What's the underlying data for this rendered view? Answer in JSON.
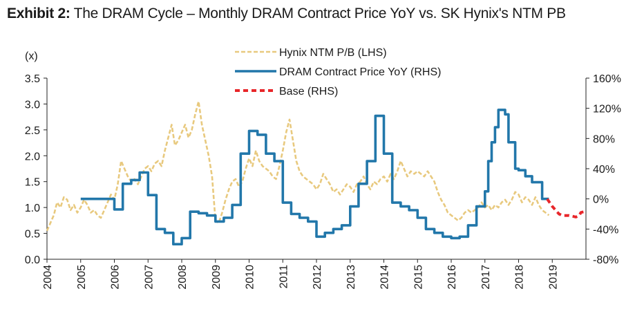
{
  "title": {
    "label": "Exhibit 2:",
    "text": "The DRAM Cycle – Monthly DRAM Contract Price YoY vs. SK Hynix's NTM PB"
  },
  "chart_data": {
    "type": "line",
    "title": "Exhibit 2: The DRAM Cycle – Monthly DRAM Contract Price YoY vs. SK Hynix's NTM PB",
    "y_left_unit": "(x)",
    "y_left_range": [
      0.0,
      3.5
    ],
    "y_left_ticks": [
      "0.0",
      "0.5",
      "1.0",
      "1.5",
      "2.0",
      "2.5",
      "3.0",
      "3.5"
    ],
    "y_right_range": [
      -80,
      160
    ],
    "y_right_ticks": [
      "-80%",
      "-40%",
      "0%",
      "40%",
      "80%",
      "120%",
      "160%"
    ],
    "x_range": [
      2004,
      2020
    ],
    "x_ticks": [
      "2004",
      "2005",
      "2006",
      "2007",
      "2008",
      "2009",
      "2010",
      "2011",
      "2012",
      "2013",
      "2014",
      "2015",
      "2016",
      "2017",
      "2018",
      "2019"
    ],
    "legend": [
      {
        "name": "Hynix NTM P/B (LHS)",
        "color": "#e8c97e",
        "style": "dashed"
      },
      {
        "name": "DRAM Contract Price YoY (RHS)",
        "color": "#2277aa",
        "style": "solid"
      },
      {
        "name": "Base (RHS)",
        "color": "#e8262a",
        "style": "dashed"
      }
    ],
    "series": [
      {
        "name": "Hynix NTM P/B (LHS)",
        "axis": "left",
        "points": [
          [
            2004.0,
            0.55
          ],
          [
            2004.1,
            0.7
          ],
          [
            2004.2,
            0.85
          ],
          [
            2004.3,
            1.1
          ],
          [
            2004.4,
            1.0
          ],
          [
            2004.5,
            1.2
          ],
          [
            2004.6,
            1.15
          ],
          [
            2004.7,
            0.95
          ],
          [
            2004.8,
            1.05
          ],
          [
            2004.9,
            0.9
          ],
          [
            2005.0,
            1.0
          ],
          [
            2005.1,
            1.15
          ],
          [
            2005.2,
            1.05
          ],
          [
            2005.3,
            0.9
          ],
          [
            2005.4,
            0.95
          ],
          [
            2005.5,
            0.85
          ],
          [
            2005.6,
            0.8
          ],
          [
            2005.7,
            0.95
          ],
          [
            2005.8,
            1.1
          ],
          [
            2005.9,
            1.25
          ],
          [
            2006.0,
            1.15
          ],
          [
            2006.1,
            1.45
          ],
          [
            2006.2,
            1.9
          ],
          [
            2006.3,
            1.75
          ],
          [
            2006.4,
            1.6
          ],
          [
            2006.5,
            1.5
          ],
          [
            2006.6,
            1.55
          ],
          [
            2006.7,
            1.45
          ],
          [
            2006.8,
            1.6
          ],
          [
            2006.9,
            1.75
          ],
          [
            2007.0,
            1.8
          ],
          [
            2007.1,
            1.7
          ],
          [
            2007.2,
            1.85
          ],
          [
            2007.3,
            1.9
          ],
          [
            2007.4,
            1.8
          ],
          [
            2007.5,
            2.1
          ],
          [
            2007.6,
            2.35
          ],
          [
            2007.7,
            2.6
          ],
          [
            2007.8,
            2.2
          ],
          [
            2007.9,
            2.3
          ],
          [
            2008.0,
            2.45
          ],
          [
            2008.1,
            2.6
          ],
          [
            2008.2,
            2.35
          ],
          [
            2008.3,
            2.5
          ],
          [
            2008.4,
            2.8
          ],
          [
            2008.5,
            3.05
          ],
          [
            2008.6,
            2.6
          ],
          [
            2008.7,
            2.3
          ],
          [
            2008.8,
            2.0
          ],
          [
            2008.9,
            1.6
          ],
          [
            2009.0,
            0.75
          ],
          [
            2009.1,
            0.7
          ],
          [
            2009.2,
            0.9
          ],
          [
            2009.3,
            1.15
          ],
          [
            2009.4,
            1.35
          ],
          [
            2009.5,
            1.5
          ],
          [
            2009.6,
            1.55
          ],
          [
            2009.7,
            1.4
          ],
          [
            2009.8,
            1.5
          ],
          [
            2009.9,
            1.75
          ],
          [
            2010.0,
            1.95
          ],
          [
            2010.1,
            1.8
          ],
          [
            2010.2,
            2.1
          ],
          [
            2010.3,
            1.9
          ],
          [
            2010.4,
            1.8
          ],
          [
            2010.5,
            1.75
          ],
          [
            2010.6,
            1.7
          ],
          [
            2010.7,
            1.6
          ],
          [
            2010.8,
            1.55
          ],
          [
            2010.9,
            1.8
          ],
          [
            2011.0,
            2.1
          ],
          [
            2011.1,
            2.45
          ],
          [
            2011.2,
            2.7
          ],
          [
            2011.3,
            2.3
          ],
          [
            2011.4,
            1.9
          ],
          [
            2011.5,
            1.7
          ],
          [
            2011.6,
            1.6
          ],
          [
            2011.7,
            1.55
          ],
          [
            2011.8,
            1.5
          ],
          [
            2011.9,
            1.45
          ],
          [
            2012.0,
            1.35
          ],
          [
            2012.1,
            1.45
          ],
          [
            2012.2,
            1.65
          ],
          [
            2012.3,
            1.55
          ],
          [
            2012.4,
            1.45
          ],
          [
            2012.5,
            1.3
          ],
          [
            2012.6,
            1.35
          ],
          [
            2012.7,
            1.25
          ],
          [
            2012.8,
            1.35
          ],
          [
            2012.9,
            1.45
          ],
          [
            2013.0,
            1.4
          ],
          [
            2013.1,
            1.3
          ],
          [
            2013.2,
            1.45
          ],
          [
            2013.3,
            1.5
          ],
          [
            2013.4,
            1.6
          ],
          [
            2013.5,
            1.45
          ],
          [
            2013.6,
            1.35
          ],
          [
            2013.7,
            1.5
          ],
          [
            2013.8,
            1.45
          ],
          [
            2013.9,
            1.55
          ],
          [
            2014.0,
            1.6
          ],
          [
            2014.1,
            1.5
          ],
          [
            2014.2,
            1.65
          ],
          [
            2014.3,
            1.55
          ],
          [
            2014.4,
            1.7
          ],
          [
            2014.5,
            1.9
          ],
          [
            2014.6,
            1.75
          ],
          [
            2014.7,
            1.6
          ],
          [
            2014.8,
            1.7
          ],
          [
            2014.9,
            1.65
          ],
          [
            2015.0,
            1.7
          ],
          [
            2015.1,
            1.65
          ],
          [
            2015.2,
            1.6
          ],
          [
            2015.3,
            1.7
          ],
          [
            2015.4,
            1.6
          ],
          [
            2015.5,
            1.5
          ],
          [
            2015.6,
            1.3
          ],
          [
            2015.7,
            1.15
          ],
          [
            2015.8,
            1.05
          ],
          [
            2015.9,
            0.9
          ],
          [
            2016.0,
            0.85
          ],
          [
            2016.1,
            0.8
          ],
          [
            2016.2,
            0.75
          ],
          [
            2016.3,
            0.8
          ],
          [
            2016.4,
            0.9
          ],
          [
            2016.5,
            0.95
          ],
          [
            2016.6,
            0.9
          ],
          [
            2016.7,
            0.95
          ],
          [
            2016.8,
            1.0
          ],
          [
            2016.9,
            1.1
          ],
          [
            2017.0,
            1.0
          ],
          [
            2017.1,
            1.05
          ],
          [
            2017.2,
            0.95
          ],
          [
            2017.3,
            1.05
          ],
          [
            2017.4,
            1.0
          ],
          [
            2017.5,
            1.1
          ],
          [
            2017.6,
            1.15
          ],
          [
            2017.7,
            1.05
          ],
          [
            2017.8,
            1.15
          ],
          [
            2017.9,
            1.3
          ],
          [
            2018.0,
            1.25
          ],
          [
            2018.1,
            1.1
          ],
          [
            2018.2,
            1.2
          ],
          [
            2018.3,
            1.15
          ],
          [
            2018.4,
            1.05
          ],
          [
            2018.5,
            1.2
          ],
          [
            2018.6,
            1.05
          ],
          [
            2018.7,
            0.95
          ],
          [
            2018.8,
            0.9
          ],
          [
            2018.9,
            0.85
          ]
        ]
      },
      {
        "name": "DRAM Contract Price YoY (RHS)",
        "axis": "right",
        "points": [
          [
            2005.0,
            0
          ],
          [
            2006.0,
            0
          ],
          [
            2006.0,
            -14
          ],
          [
            2006.25,
            -14
          ],
          [
            2006.25,
            20
          ],
          [
            2006.5,
            20
          ],
          [
            2006.5,
            25
          ],
          [
            2006.75,
            25
          ],
          [
            2006.75,
            35
          ],
          [
            2007.0,
            35
          ],
          [
            2007.0,
            5
          ],
          [
            2007.25,
            5
          ],
          [
            2007.25,
            -40
          ],
          [
            2007.5,
            -40
          ],
          [
            2007.5,
            -45
          ],
          [
            2007.75,
            -45
          ],
          [
            2007.75,
            -60
          ],
          [
            2008.0,
            -60
          ],
          [
            2008.0,
            -52
          ],
          [
            2008.25,
            -52
          ],
          [
            2008.25,
            -17
          ],
          [
            2008.5,
            -17
          ],
          [
            2008.5,
            -19
          ],
          [
            2008.75,
            -19
          ],
          [
            2008.75,
            -22
          ],
          [
            2009.0,
            -22
          ],
          [
            2009.0,
            -30
          ],
          [
            2009.25,
            -30
          ],
          [
            2009.25,
            -25
          ],
          [
            2009.5,
            -25
          ],
          [
            2009.5,
            -8
          ],
          [
            2009.75,
            -8
          ],
          [
            2009.75,
            60
          ],
          [
            2010.0,
            60
          ],
          [
            2010.0,
            90
          ],
          [
            2010.25,
            90
          ],
          [
            2010.25,
            85
          ],
          [
            2010.5,
            85
          ],
          [
            2010.5,
            60
          ],
          [
            2010.75,
            60
          ],
          [
            2010.75,
            50
          ],
          [
            2011.0,
            50
          ],
          [
            2011.0,
            -5
          ],
          [
            2011.25,
            -5
          ],
          [
            2011.25,
            -20
          ],
          [
            2011.5,
            -20
          ],
          [
            2011.5,
            -25
          ],
          [
            2011.75,
            -25
          ],
          [
            2011.75,
            -30
          ],
          [
            2012.0,
            -30
          ],
          [
            2012.0,
            -50
          ],
          [
            2012.25,
            -50
          ],
          [
            2012.25,
            -45
          ],
          [
            2012.5,
            -45
          ],
          [
            2012.5,
            -40
          ],
          [
            2012.75,
            -40
          ],
          [
            2012.75,
            -35
          ],
          [
            2013.0,
            -35
          ],
          [
            2013.0,
            -10
          ],
          [
            2013.25,
            -10
          ],
          [
            2013.25,
            20
          ],
          [
            2013.5,
            20
          ],
          [
            2013.5,
            50
          ],
          [
            2013.75,
            50
          ],
          [
            2013.75,
            110
          ],
          [
            2014.0,
            110
          ],
          [
            2014.0,
            60
          ],
          [
            2014.25,
            60
          ],
          [
            2014.25,
            -5
          ],
          [
            2014.5,
            -5
          ],
          [
            2014.5,
            -10
          ],
          [
            2014.75,
            -10
          ],
          [
            2014.75,
            -15
          ],
          [
            2015.0,
            -15
          ],
          [
            2015.0,
            -25
          ],
          [
            2015.25,
            -25
          ],
          [
            2015.25,
            -40
          ],
          [
            2015.5,
            -40
          ],
          [
            2015.5,
            -45
          ],
          [
            2015.75,
            -45
          ],
          [
            2015.75,
            -50
          ],
          [
            2016.0,
            -50
          ],
          [
            2016.0,
            -52
          ],
          [
            2016.25,
            -52
          ],
          [
            2016.25,
            -50
          ],
          [
            2016.5,
            -50
          ],
          [
            2016.5,
            -35
          ],
          [
            2016.75,
            -35
          ],
          [
            2016.75,
            -10
          ],
          [
            2017.0,
            -10
          ],
          [
            2017.0,
            10
          ],
          [
            2017.1,
            10
          ],
          [
            2017.1,
            50
          ],
          [
            2017.2,
            50
          ],
          [
            2017.2,
            75
          ],
          [
            2017.3,
            75
          ],
          [
            2017.3,
            95
          ],
          [
            2017.4,
            95
          ],
          [
            2017.4,
            118
          ],
          [
            2017.6,
            118
          ],
          [
            2017.6,
            112
          ],
          [
            2017.7,
            112
          ],
          [
            2017.7,
            75
          ],
          [
            2017.9,
            75
          ],
          [
            2017.9,
            40
          ],
          [
            2018.0,
            40
          ],
          [
            2018.0,
            38
          ],
          [
            2018.2,
            38
          ],
          [
            2018.2,
            30
          ],
          [
            2018.4,
            30
          ],
          [
            2018.4,
            22
          ],
          [
            2018.7,
            22
          ],
          [
            2018.7,
            0
          ],
          [
            2018.9,
            0
          ]
        ]
      },
      {
        "name": "Base (RHS)",
        "axis": "right",
        "points": [
          [
            2018.85,
            0
          ],
          [
            2019.0,
            -10
          ],
          [
            2019.1,
            -15
          ],
          [
            2019.2,
            -20
          ],
          [
            2019.3,
            -22
          ],
          [
            2019.5,
            -22
          ],
          [
            2019.7,
            -24
          ],
          [
            2019.8,
            -22
          ],
          [
            2019.85,
            -18
          ],
          [
            2019.95,
            -17
          ]
        ]
      }
    ]
  }
}
